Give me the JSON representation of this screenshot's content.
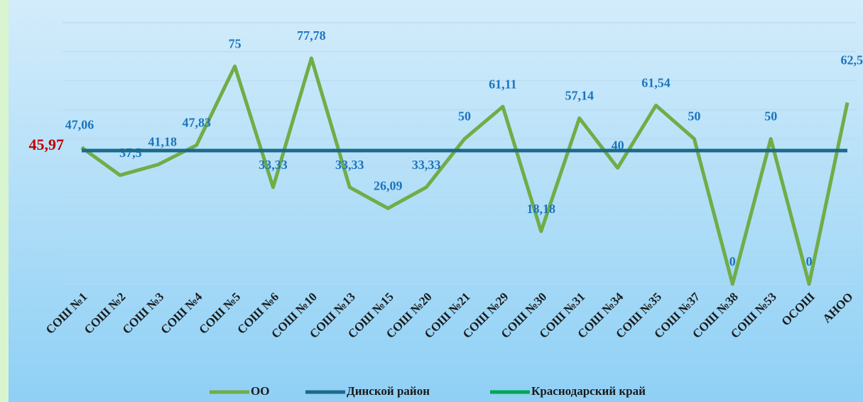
{
  "chart_data": {
    "type": "line",
    "categories": [
      "СОШ №1",
      "СОШ №2",
      "СОШ №3",
      "СОШ №4",
      "СОШ №5",
      "СОШ №6",
      "СОШ №10",
      "СОШ №13",
      "СОШ №15",
      "СОШ №20",
      "СОШ №21",
      "СОШ №29",
      "СОШ №30",
      "СОШ №31",
      "СОШ №34",
      "СОШ №35",
      "СОШ №37",
      "СОШ №38",
      "СОШ №53",
      "ОСОШ",
      "АНОО"
    ],
    "ylim": [
      0,
      90
    ],
    "yticks": [
      0,
      10,
      20,
      30,
      40,
      50,
      60,
      70,
      80,
      90
    ],
    "grid": true,
    "series": [
      {
        "name": "ОО",
        "color": "#70ad47",
        "values": [
          47.06,
          37.5,
          41.18,
          47.83,
          75,
          33.33,
          77.78,
          33.33,
          26.09,
          33.33,
          50,
          61.11,
          18.18,
          57.14,
          40,
          61.54,
          50,
          0,
          50,
          0,
          62.5
        ],
        "value_labels": [
          "47,06",
          "37,5",
          "41,18",
          "47,83",
          "75",
          "33,33",
          "77,78",
          "33,33",
          "26,09",
          "33,33",
          "50",
          "61,11",
          "18,18",
          "57,14",
          "40",
          "61,54",
          "50",
          "0",
          "50",
          "0",
          "62,5"
        ]
      },
      {
        "name": "Динской район",
        "color": "#1b6a8a",
        "value": 45.97,
        "value_label": "45,97"
      },
      {
        "name": "Краснодарский край",
        "color": "#00a651",
        "values": [
          null,
          null,
          null,
          null,
          null,
          null,
          null,
          null,
          null,
          null,
          null,
          null,
          null,
          null,
          null,
          null,
          null,
          null,
          null,
          null,
          null
        ]
      }
    ],
    "legend": "bottom"
  }
}
